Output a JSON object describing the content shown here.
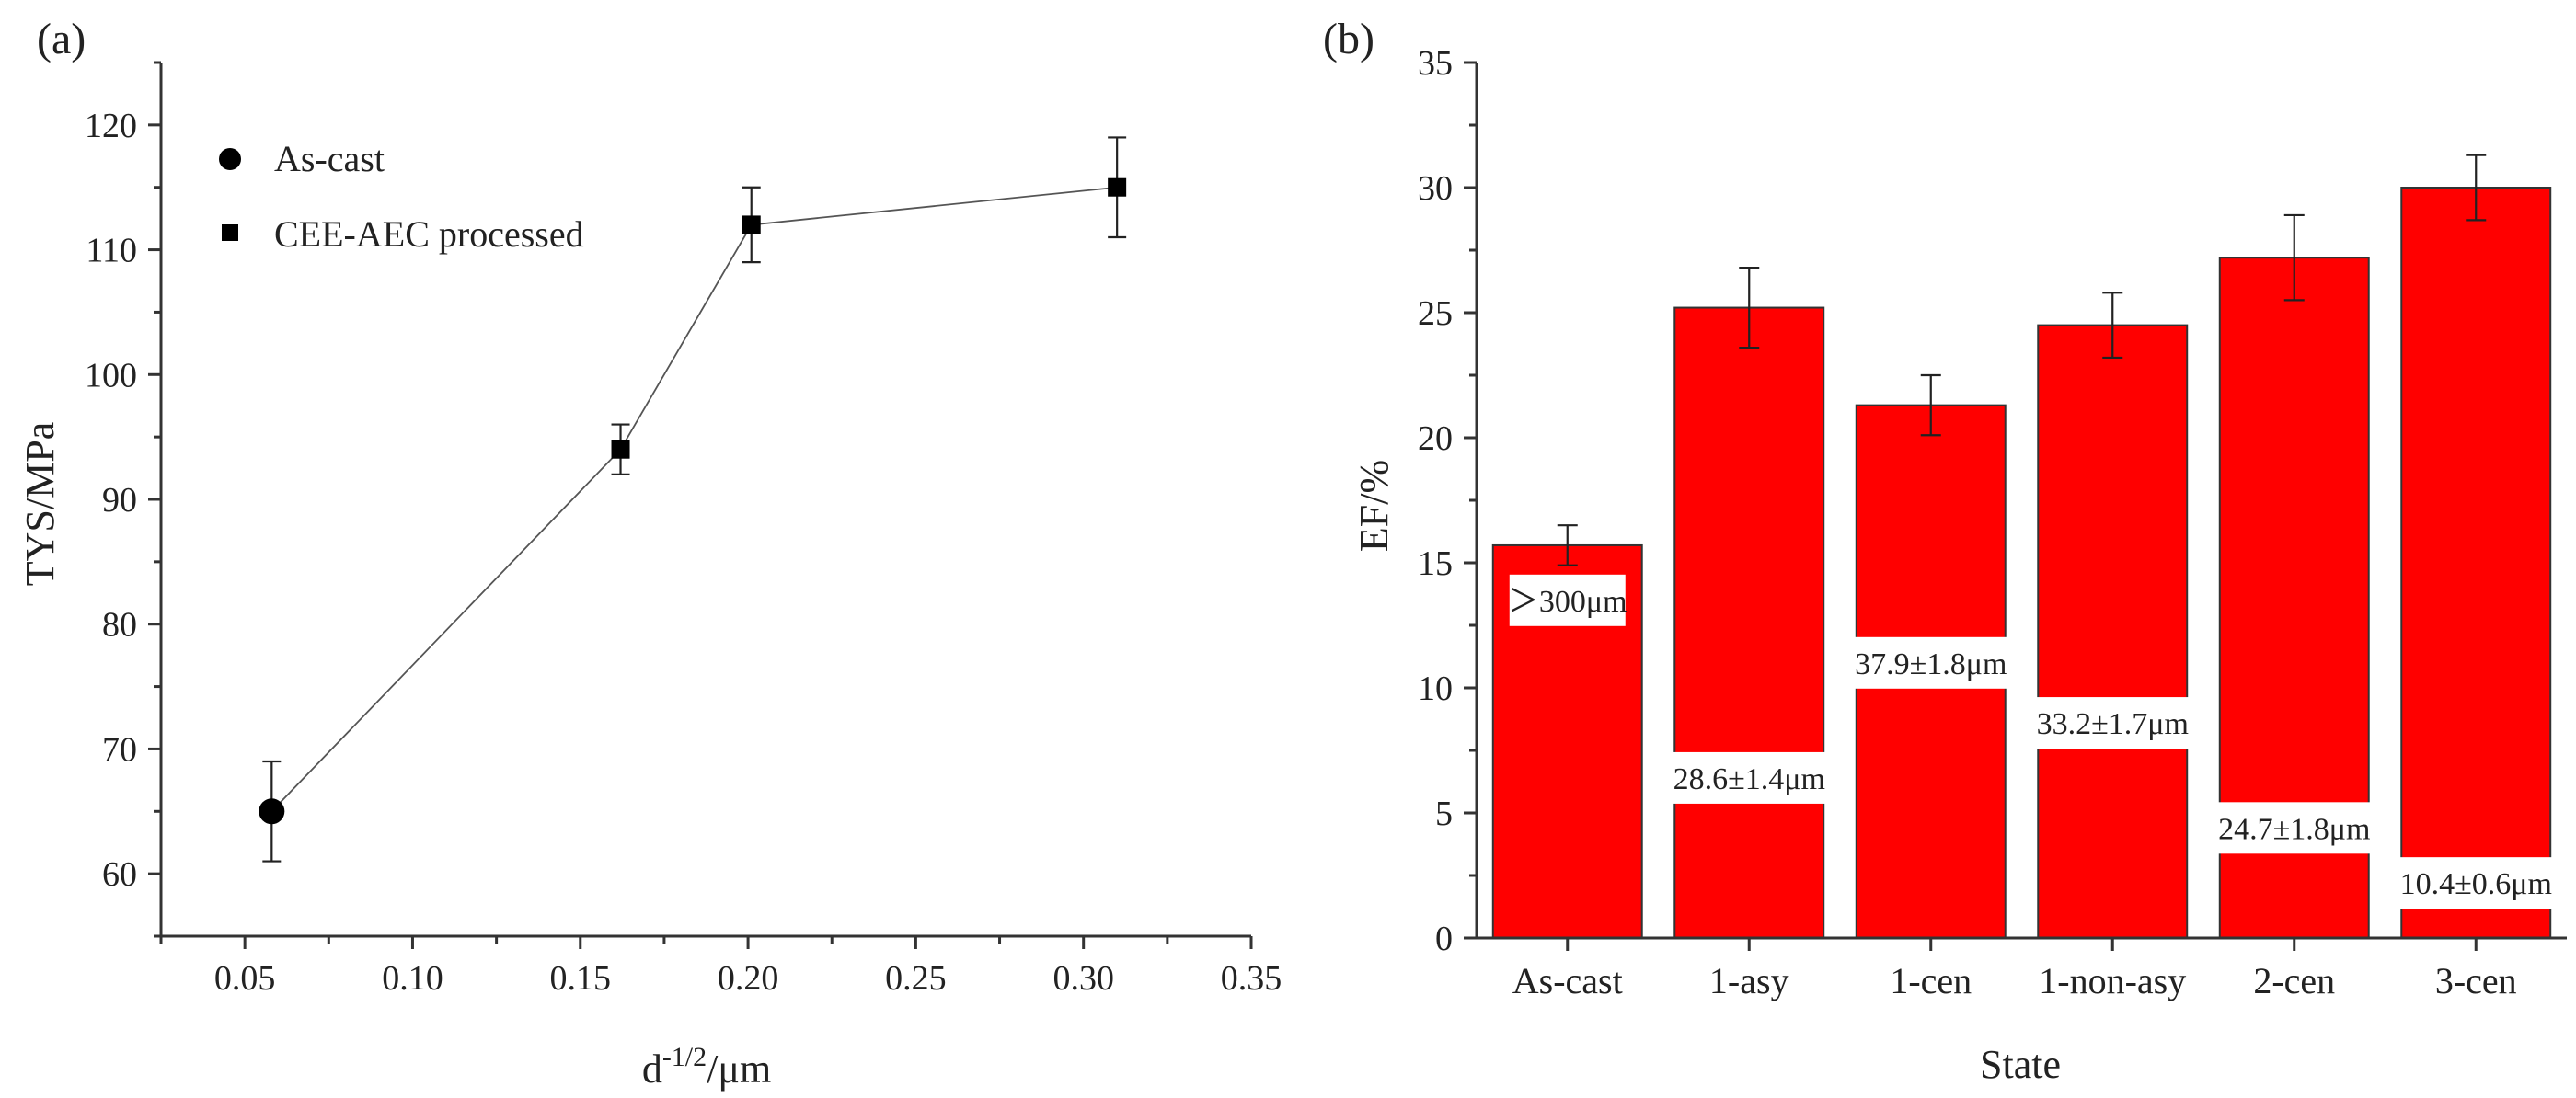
{
  "chart_data": [
    {
      "panel": "(a)",
      "type": "line",
      "xlabel_base": "d",
      "xlabel_sup": "-1/2",
      "xlabel_unit": "/μm",
      "ylabel": "TYS/MPa",
      "xlim": [
        0.025,
        0.35
      ],
      "ylim": [
        55,
        125
      ],
      "xticks": [
        "0.05",
        "0.10",
        "0.15",
        "0.20",
        "0.25",
        "0.30",
        "0.35"
      ],
      "xtick_values": [
        0.05,
        0.1,
        0.15,
        0.2,
        0.25,
        0.3,
        0.35
      ],
      "yticks": [
        "60",
        "70",
        "80",
        "90",
        "100",
        "110",
        "120"
      ],
      "ytick_values": [
        60,
        70,
        80,
        90,
        100,
        110,
        120
      ],
      "legend": [
        {
          "label": "As-cast",
          "marker": "circle"
        },
        {
          "label": "CEE-AEC processed",
          "marker": "square"
        }
      ],
      "series": [
        {
          "name": "As-cast",
          "marker": "circle",
          "points": [
            {
              "x": 0.058,
              "y": 65,
              "err": 4
            }
          ]
        },
        {
          "name": "CEE-AEC processed",
          "marker": "square",
          "points": [
            {
              "x": 0.162,
              "y": 94,
              "err": 2
            },
            {
              "x": 0.201,
              "y": 112,
              "err": 3
            },
            {
              "x": 0.31,
              "y": 115,
              "err": 4
            }
          ]
        }
      ]
    },
    {
      "panel": "(b)",
      "type": "bar",
      "xlabel": "State",
      "ylabel": "EF/%",
      "ylim": [
        0,
        35
      ],
      "yticks": [
        "0",
        "5",
        "10",
        "15",
        "20",
        "25",
        "30",
        "35"
      ],
      "ytick_values": [
        0,
        5,
        10,
        15,
        20,
        25,
        30,
        35
      ],
      "categories": [
        "As-cast",
        "1-asy",
        "1-cen",
        "1-non-asy",
        "2-cen",
        "3-cen"
      ],
      "values": [
        15.7,
        25.2,
        21.3,
        24.5,
        27.2,
        30.0
      ],
      "errors": [
        0.8,
        1.6,
        1.2,
        1.3,
        1.7,
        1.3
      ],
      "bar_labels": [
        "＞300μm",
        "28.6±1.4μm",
        "37.9±1.8μm",
        "33.2±1.7μm",
        "24.7±1.8μm",
        "10.4±0.6μm"
      ],
      "bar_label_y": [
        13.5,
        6.4,
        11.0,
        8.6,
        4.4,
        2.2
      ],
      "bar_color": "#ff0000"
    }
  ]
}
